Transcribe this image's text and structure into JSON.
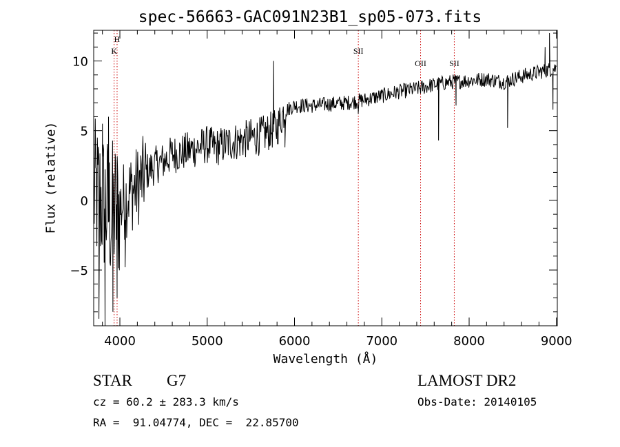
{
  "chart_data": {
    "type": "line",
    "title": "spec-56663-GAC091N23B1_sp05-073.fits",
    "xlabel": "Wavelength (Å)",
    "ylabel": "Flux (relative)",
    "xlim": [
      3700,
      9010
    ],
    "ylim": [
      -9,
      12.2
    ],
    "x_ticks": [
      4000,
      5000,
      6000,
      7000,
      8000,
      9000
    ],
    "y_ticks": [
      -5,
      0,
      5,
      10
    ],
    "grid": false,
    "line_color": "#000000",
    "marker_color": "#cc0000",
    "continuum": [
      [
        3700,
        0.5
      ],
      [
        3800,
        0.0
      ],
      [
        3900,
        -1.0
      ],
      [
        4000,
        -0.5
      ],
      [
        4100,
        0.5
      ],
      [
        4200,
        1.0
      ],
      [
        4300,
        2.0
      ],
      [
        4400,
        2.5
      ],
      [
        4500,
        2.8
      ],
      [
        4600,
        3.3
      ],
      [
        4700,
        3.4
      ],
      [
        4800,
        3.6
      ],
      [
        4900,
        3.8
      ],
      [
        5000,
        4.0
      ],
      [
        5100,
        3.8
      ],
      [
        5200,
        4.0
      ],
      [
        5300,
        4.2
      ],
      [
        5400,
        4.3
      ],
      [
        5500,
        4.5
      ],
      [
        5600,
        4.6
      ],
      [
        5700,
        4.9
      ],
      [
        5800,
        5.2
      ],
      [
        5880,
        6.4
      ],
      [
        6000,
        6.8
      ],
      [
        6200,
        6.8
      ],
      [
        6400,
        6.9
      ],
      [
        6600,
        7.0
      ],
      [
        6800,
        7.2
      ],
      [
        7000,
        7.5
      ],
      [
        7200,
        7.8
      ],
      [
        7400,
        8.0
      ],
      [
        7600,
        8.3
      ],
      [
        7800,
        8.5
      ],
      [
        8000,
        8.6
      ],
      [
        8200,
        8.7
      ],
      [
        8400,
        8.5
      ],
      [
        8600,
        8.9
      ],
      [
        8800,
        9.2
      ],
      [
        9000,
        9.5
      ]
    ],
    "features": [
      {
        "x": 3760,
        "y": -8.5
      },
      {
        "x": 3800,
        "y": 5.5
      },
      {
        "x": 3830,
        "y": -9.0
      },
      {
        "x": 3870,
        "y": 6.0
      },
      {
        "x": 3920,
        "y": -8.0
      },
      {
        "x": 3968,
        "y": -7.0
      },
      {
        "x": 4060,
        "y": -4.8
      },
      {
        "x": 5760,
        "y": 10.0
      },
      {
        "x": 5890,
        "y": 3.8
      },
      {
        "x": 6730,
        "y": 6.2
      },
      {
        "x": 7650,
        "y": 4.3
      },
      {
        "x": 7850,
        "y": 6.8
      },
      {
        "x": 8440,
        "y": 5.2
      },
      {
        "x": 8870,
        "y": 11.0
      },
      {
        "x": 8920,
        "y": 12.0
      },
      {
        "x": 8960,
        "y": 6.5
      }
    ],
    "line_markers": [
      {
        "wavelength": 3934,
        "labels": [
          "K"
        ]
      },
      {
        "wavelength": 3968,
        "labels": [
          "H"
        ]
      },
      {
        "wavelength": 6731,
        "labels": [
          "SII"
        ]
      },
      {
        "wavelength": 7444,
        "labels": [
          "OII"
        ]
      },
      {
        "wavelength": 7830,
        "labels": [
          "SII"
        ]
      }
    ]
  },
  "info": {
    "object_class": "STAR",
    "subclass": "G7",
    "survey": "LAMOST DR2",
    "cz": "cz = 60.2 ± 283.3 km/s",
    "obs_date": "Obs-Date: 20140105",
    "coords": "RA =  91.04774, DEC =  22.85700"
  }
}
